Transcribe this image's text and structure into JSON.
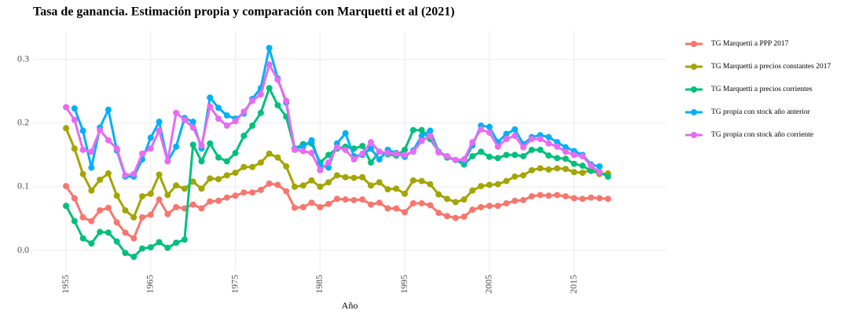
{
  "chart_data": {
    "type": "line",
    "title": "Tasa de ganancia. Estimación propia y comparación con Marquetti et al (2021)",
    "x_label": "Año",
    "x": [
      1955,
      1956,
      1957,
      1958,
      1959,
      1960,
      1961,
      1962,
      1963,
      1964,
      1965,
      1966,
      1967,
      1968,
      1969,
      1970,
      1971,
      1972,
      1973,
      1974,
      1975,
      1976,
      1977,
      1978,
      1979,
      1980,
      1981,
      1982,
      1983,
      1984,
      1985,
      1986,
      1987,
      1988,
      1989,
      1990,
      1991,
      1992,
      1993,
      1994,
      1995,
      1996,
      1997,
      1998,
      1999,
      2000,
      2001,
      2002,
      2003,
      2004,
      2005,
      2006,
      2007,
      2008,
      2009,
      2010,
      2011,
      2012,
      2013,
      2014,
      2015,
      2016,
      2017,
      2018,
      2019
    ],
    "series": [
      {
        "name": "TG Marquetti a PPP 2017",
        "color": "#F8766D",
        "values": [
          0.101,
          0.082,
          0.052,
          0.046,
          0.063,
          0.067,
          0.044,
          0.028,
          0.019,
          0.052,
          0.056,
          0.08,
          0.057,
          0.068,
          0.066,
          0.072,
          0.066,
          0.077,
          0.078,
          0.083,
          0.086,
          0.091,
          0.091,
          0.095,
          0.105,
          0.103,
          0.093,
          0.067,
          0.068,
          0.075,
          0.068,
          0.073,
          0.081,
          0.08,
          0.079,
          0.08,
          0.072,
          0.075,
          0.066,
          0.066,
          0.06,
          0.074,
          0.074,
          0.071,
          0.059,
          0.054,
          0.051,
          0.053,
          0.064,
          0.068,
          0.07,
          0.07,
          0.074,
          0.078,
          0.079,
          0.085,
          0.087,
          0.086,
          0.087,
          0.085,
          0.082,
          0.081,
          0.083,
          0.082,
          0.081
        ]
      },
      {
        "name": "TG Marquetti a precios constantes 2017",
        "color": "#A3A500",
        "values": [
          0.192,
          0.16,
          0.12,
          0.094,
          0.111,
          0.121,
          0.086,
          0.063,
          0.052,
          0.085,
          0.089,
          0.119,
          0.087,
          0.102,
          0.097,
          0.108,
          0.097,
          0.113,
          0.112,
          0.118,
          0.122,
          0.131,
          0.131,
          0.138,
          0.152,
          0.146,
          0.132,
          0.1,
          0.102,
          0.11,
          0.1,
          0.107,
          0.118,
          0.115,
          0.114,
          0.115,
          0.102,
          0.107,
          0.096,
          0.097,
          0.089,
          0.11,
          0.109,
          0.104,
          0.088,
          0.081,
          0.076,
          0.08,
          0.094,
          0.101,
          0.103,
          0.104,
          0.109,
          0.116,
          0.118,
          0.126,
          0.129,
          0.127,
          0.129,
          0.128,
          0.123,
          0.122,
          0.126,
          0.12,
          0.121
        ]
      },
      {
        "name": "TG Marquetti a precios corrientes",
        "color": "#00BF7D",
        "values": [
          0.07,
          0.046,
          0.019,
          0.011,
          0.029,
          0.028,
          0.014,
          -0.004,
          -0.01,
          0.003,
          0.005,
          0.013,
          0.004,
          0.012,
          0.017,
          0.166,
          0.14,
          0.168,
          0.146,
          0.14,
          0.153,
          0.18,
          0.196,
          0.216,
          0.255,
          0.228,
          0.21,
          0.16,
          0.167,
          0.168,
          0.138,
          0.15,
          0.16,
          0.163,
          0.16,
          0.164,
          0.138,
          0.155,
          0.151,
          0.149,
          0.158,
          0.189,
          0.189,
          0.175,
          0.155,
          0.146,
          0.142,
          0.135,
          0.148,
          0.155,
          0.147,
          0.145,
          0.15,
          0.15,
          0.148,
          0.158,
          0.158,
          0.149,
          0.145,
          0.144,
          0.136,
          0.133,
          0.125,
          0.123,
          0.116
        ]
      },
      {
        "name": "TG propia con stock año anterior",
        "color": "#00B0F6",
        "values": [
          null,
          0.223,
          0.188,
          0.13,
          0.193,
          0.221,
          0.157,
          0.116,
          0.116,
          0.143,
          0.177,
          0.202,
          0.14,
          0.163,
          0.208,
          0.202,
          0.16,
          0.24,
          0.224,
          0.212,
          0.207,
          0.215,
          0.238,
          0.255,
          0.318,
          0.27,
          0.232,
          0.16,
          0.163,
          0.173,
          0.134,
          0.13,
          0.168,
          0.184,
          0.148,
          0.15,
          0.16,
          0.143,
          0.158,
          0.153,
          0.147,
          0.157,
          0.18,
          0.188,
          0.155,
          0.148,
          0.142,
          0.14,
          0.165,
          0.196,
          0.194,
          0.17,
          0.183,
          0.19,
          0.167,
          0.178,
          0.181,
          0.178,
          0.17,
          0.162,
          0.156,
          0.15,
          0.135,
          0.132,
          null
        ]
      },
      {
        "name": "TG propia con stock año corriente",
        "color": "#E76BF3",
        "values": [
          0.225,
          0.205,
          0.158,
          0.155,
          0.189,
          0.173,
          0.16,
          0.118,
          0.12,
          0.152,
          0.16,
          0.188,
          0.14,
          0.216,
          0.205,
          0.193,
          0.165,
          0.226,
          0.207,
          0.196,
          0.203,
          0.218,
          0.235,
          0.245,
          0.292,
          0.268,
          0.235,
          0.158,
          0.156,
          0.153,
          0.126,
          0.138,
          0.162,
          0.158,
          0.143,
          0.152,
          0.17,
          0.155,
          0.153,
          0.152,
          0.15,
          0.155,
          0.172,
          0.18,
          0.154,
          0.148,
          0.142,
          0.143,
          0.17,
          0.19,
          0.185,
          0.163,
          0.175,
          0.18,
          0.162,
          0.175,
          0.175,
          0.168,
          0.163,
          0.155,
          0.15,
          0.148,
          0.133,
          0.123,
          null
        ]
      }
    ],
    "xlim": [
      1951.1,
      2025.9
    ],
    "ylim": [
      -0.032,
      0.344
    ],
    "xticks": [
      1955,
      1965,
      1975,
      1985,
      1995,
      2005,
      2015
    ],
    "yticks": [
      {
        "value": 0,
        "label": "0.0"
      },
      0.1,
      0.2,
      0.3
    ],
    "grid": true,
    "legend": "right"
  }
}
